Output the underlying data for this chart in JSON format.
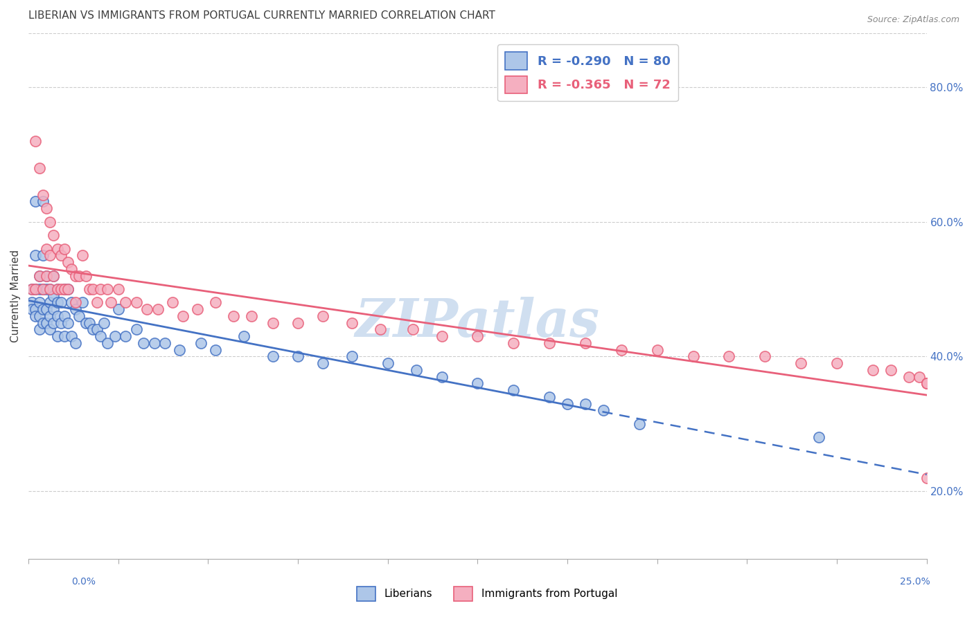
{
  "title": "LIBERIAN VS IMMIGRANTS FROM PORTUGAL CURRENTLY MARRIED CORRELATION CHART",
  "source": "Source: ZipAtlas.com",
  "ylabel": "Currently Married",
  "ylabel_right_ticks": [
    0.2,
    0.4,
    0.6,
    0.8
  ],
  "xmin": 0.0,
  "xmax": 0.25,
  "ymin": 0.1,
  "ymax": 0.88,
  "liberian_R": -0.29,
  "liberian_N": 80,
  "portugal_R": -0.365,
  "portugal_N": 72,
  "liberian_color": "#adc6e8",
  "portugal_color": "#f5afc0",
  "liberian_edge_color": "#4472c4",
  "portugal_edge_color": "#e8607a",
  "liberian_line_color": "#4472c4",
  "portugal_line_color": "#e8607a",
  "watermark": "ZIPatlas",
  "watermark_color": "#d0dff0",
  "title_color": "#404040",
  "source_color": "#888888",
  "axis_tick_color": "#4472c4",
  "grid_color": "#cccccc",
  "liberian_line_solid_end": 0.155,
  "liberian_x": [
    0.001,
    0.001,
    0.001,
    0.002,
    0.002,
    0.002,
    0.002,
    0.002,
    0.003,
    0.003,
    0.003,
    0.003,
    0.003,
    0.004,
    0.004,
    0.004,
    0.004,
    0.004,
    0.005,
    0.005,
    0.005,
    0.005,
    0.006,
    0.006,
    0.006,
    0.006,
    0.007,
    0.007,
    0.007,
    0.007,
    0.008,
    0.008,
    0.008,
    0.008,
    0.009,
    0.009,
    0.01,
    0.01,
    0.01,
    0.011,
    0.011,
    0.012,
    0.012,
    0.013,
    0.013,
    0.014,
    0.015,
    0.016,
    0.017,
    0.018,
    0.019,
    0.02,
    0.021,
    0.022,
    0.024,
    0.025,
    0.027,
    0.03,
    0.032,
    0.035,
    0.038,
    0.042,
    0.048,
    0.052,
    0.06,
    0.068,
    0.075,
    0.082,
    0.09,
    0.1,
    0.108,
    0.115,
    0.125,
    0.135,
    0.145,
    0.15,
    0.155,
    0.16,
    0.17,
    0.22
  ],
  "liberian_y": [
    0.5,
    0.48,
    0.47,
    0.63,
    0.55,
    0.5,
    0.47,
    0.46,
    0.52,
    0.5,
    0.48,
    0.46,
    0.44,
    0.63,
    0.55,
    0.5,
    0.47,
    0.45,
    0.52,
    0.5,
    0.47,
    0.45,
    0.5,
    0.48,
    0.46,
    0.44,
    0.52,
    0.49,
    0.47,
    0.45,
    0.5,
    0.48,
    0.46,
    0.43,
    0.48,
    0.45,
    0.5,
    0.46,
    0.43,
    0.5,
    0.45,
    0.48,
    0.43,
    0.47,
    0.42,
    0.46,
    0.48,
    0.45,
    0.45,
    0.44,
    0.44,
    0.43,
    0.45,
    0.42,
    0.43,
    0.47,
    0.43,
    0.44,
    0.42,
    0.42,
    0.42,
    0.41,
    0.42,
    0.41,
    0.43,
    0.4,
    0.4,
    0.39,
    0.4,
    0.39,
    0.38,
    0.37,
    0.36,
    0.35,
    0.34,
    0.33,
    0.33,
    0.32,
    0.3,
    0.28
  ],
  "portugal_x": [
    0.001,
    0.002,
    0.002,
    0.003,
    0.003,
    0.004,
    0.004,
    0.005,
    0.005,
    0.005,
    0.006,
    0.006,
    0.006,
    0.007,
    0.007,
    0.008,
    0.008,
    0.009,
    0.009,
    0.01,
    0.01,
    0.011,
    0.011,
    0.012,
    0.013,
    0.013,
    0.014,
    0.015,
    0.016,
    0.017,
    0.018,
    0.019,
    0.02,
    0.022,
    0.023,
    0.025,
    0.027,
    0.03,
    0.033,
    0.036,
    0.04,
    0.043,
    0.047,
    0.052,
    0.057,
    0.062,
    0.068,
    0.075,
    0.082,
    0.09,
    0.098,
    0.107,
    0.115,
    0.125,
    0.135,
    0.145,
    0.155,
    0.165,
    0.175,
    0.185,
    0.195,
    0.205,
    0.215,
    0.225,
    0.235,
    0.24,
    0.245,
    0.248,
    0.25,
    0.25,
    0.25,
    0.25
  ],
  "portugal_y": [
    0.5,
    0.72,
    0.5,
    0.68,
    0.52,
    0.64,
    0.5,
    0.62,
    0.56,
    0.52,
    0.6,
    0.55,
    0.5,
    0.58,
    0.52,
    0.56,
    0.5,
    0.55,
    0.5,
    0.56,
    0.5,
    0.54,
    0.5,
    0.53,
    0.52,
    0.48,
    0.52,
    0.55,
    0.52,
    0.5,
    0.5,
    0.48,
    0.5,
    0.5,
    0.48,
    0.5,
    0.48,
    0.48,
    0.47,
    0.47,
    0.48,
    0.46,
    0.47,
    0.48,
    0.46,
    0.46,
    0.45,
    0.45,
    0.46,
    0.45,
    0.44,
    0.44,
    0.43,
    0.43,
    0.42,
    0.42,
    0.42,
    0.41,
    0.41,
    0.4,
    0.4,
    0.4,
    0.39,
    0.39,
    0.38,
    0.38,
    0.37,
    0.37,
    0.36,
    0.36,
    0.22,
    0.36
  ]
}
